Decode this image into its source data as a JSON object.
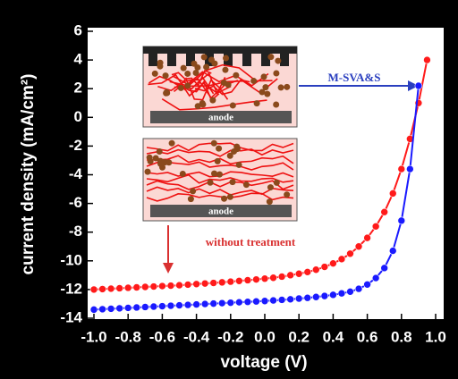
{
  "chart_data": {
    "type": "line",
    "x_label": "voltage (V)",
    "y_label": "current density (mA/cm²)",
    "x": [
      -1.0,
      -0.95,
      -0.9,
      -0.85,
      -0.8,
      -0.75,
      -0.7,
      -0.65,
      -0.6,
      -0.55,
      -0.5,
      -0.45,
      -0.4,
      -0.35,
      -0.3,
      -0.25,
      -0.2,
      -0.15,
      -0.1,
      -0.05,
      0.0,
      0.05,
      0.1,
      0.15,
      0.2,
      0.25,
      0.3,
      0.35,
      0.4,
      0.45,
      0.5,
      0.55,
      0.6,
      0.65,
      0.7,
      0.75,
      0.8,
      0.85,
      0.9,
      0.95
    ],
    "series": [
      {
        "color": "#ff1a1a",
        "values": [
          -12.0,
          -11.97,
          -11.94,
          -11.91,
          -11.88,
          -11.85,
          -11.82,
          -11.79,
          -11.76,
          -11.73,
          -11.7,
          -11.66,
          -11.62,
          -11.58,
          -11.54,
          -11.5,
          -11.45,
          -11.4,
          -11.35,
          -11.3,
          -11.24,
          -11.18,
          -11.1,
          -11.0,
          -10.9,
          -10.78,
          -10.62,
          -10.42,
          -10.18,
          -9.88,
          -9.5,
          -9.0,
          -8.4,
          -7.6,
          -6.6,
          -5.3,
          -3.6,
          -1.5,
          1.0,
          4.0
        ]
      },
      {
        "color": "#1a1aff",
        "values": [
          -13.4,
          -13.37,
          -13.34,
          -13.31,
          -13.28,
          -13.25,
          -13.22,
          -13.19,
          -13.16,
          -13.13,
          -13.1,
          -13.07,
          -13.04,
          -13.01,
          -12.98,
          -12.95,
          -12.92,
          -12.89,
          -12.86,
          -12.83,
          -12.8,
          -12.76,
          -12.72,
          -12.68,
          -12.63,
          -12.58,
          -12.52,
          -12.45,
          -12.37,
          -12.27,
          -12.15,
          -11.95,
          -11.65,
          -11.2,
          -10.5,
          -9.3,
          -7.2,
          -3.6,
          2.2,
          null
        ]
      }
    ],
    "xlim": [
      -1.0,
      1.0
    ],
    "ylim": [
      -14,
      6
    ],
    "xticks": [
      {
        "value": -1.0,
        "label": "-1.0"
      },
      -0.8,
      -0.6,
      -0.4,
      -0.2,
      {
        "value": 0.0,
        "label": "0.0"
      },
      0.2,
      0.4,
      0.6,
      0.8,
      {
        "value": 1.0,
        "label": "1.0"
      }
    ],
    "yticks": [
      -14,
      -12,
      -10,
      -8,
      -6,
      -4,
      -2,
      0,
      2,
      4,
      6
    ],
    "annotations": [
      "M-SVA&S",
      "without treatment"
    ],
    "inset_labels": [
      "anode",
      "anode"
    ]
  }
}
